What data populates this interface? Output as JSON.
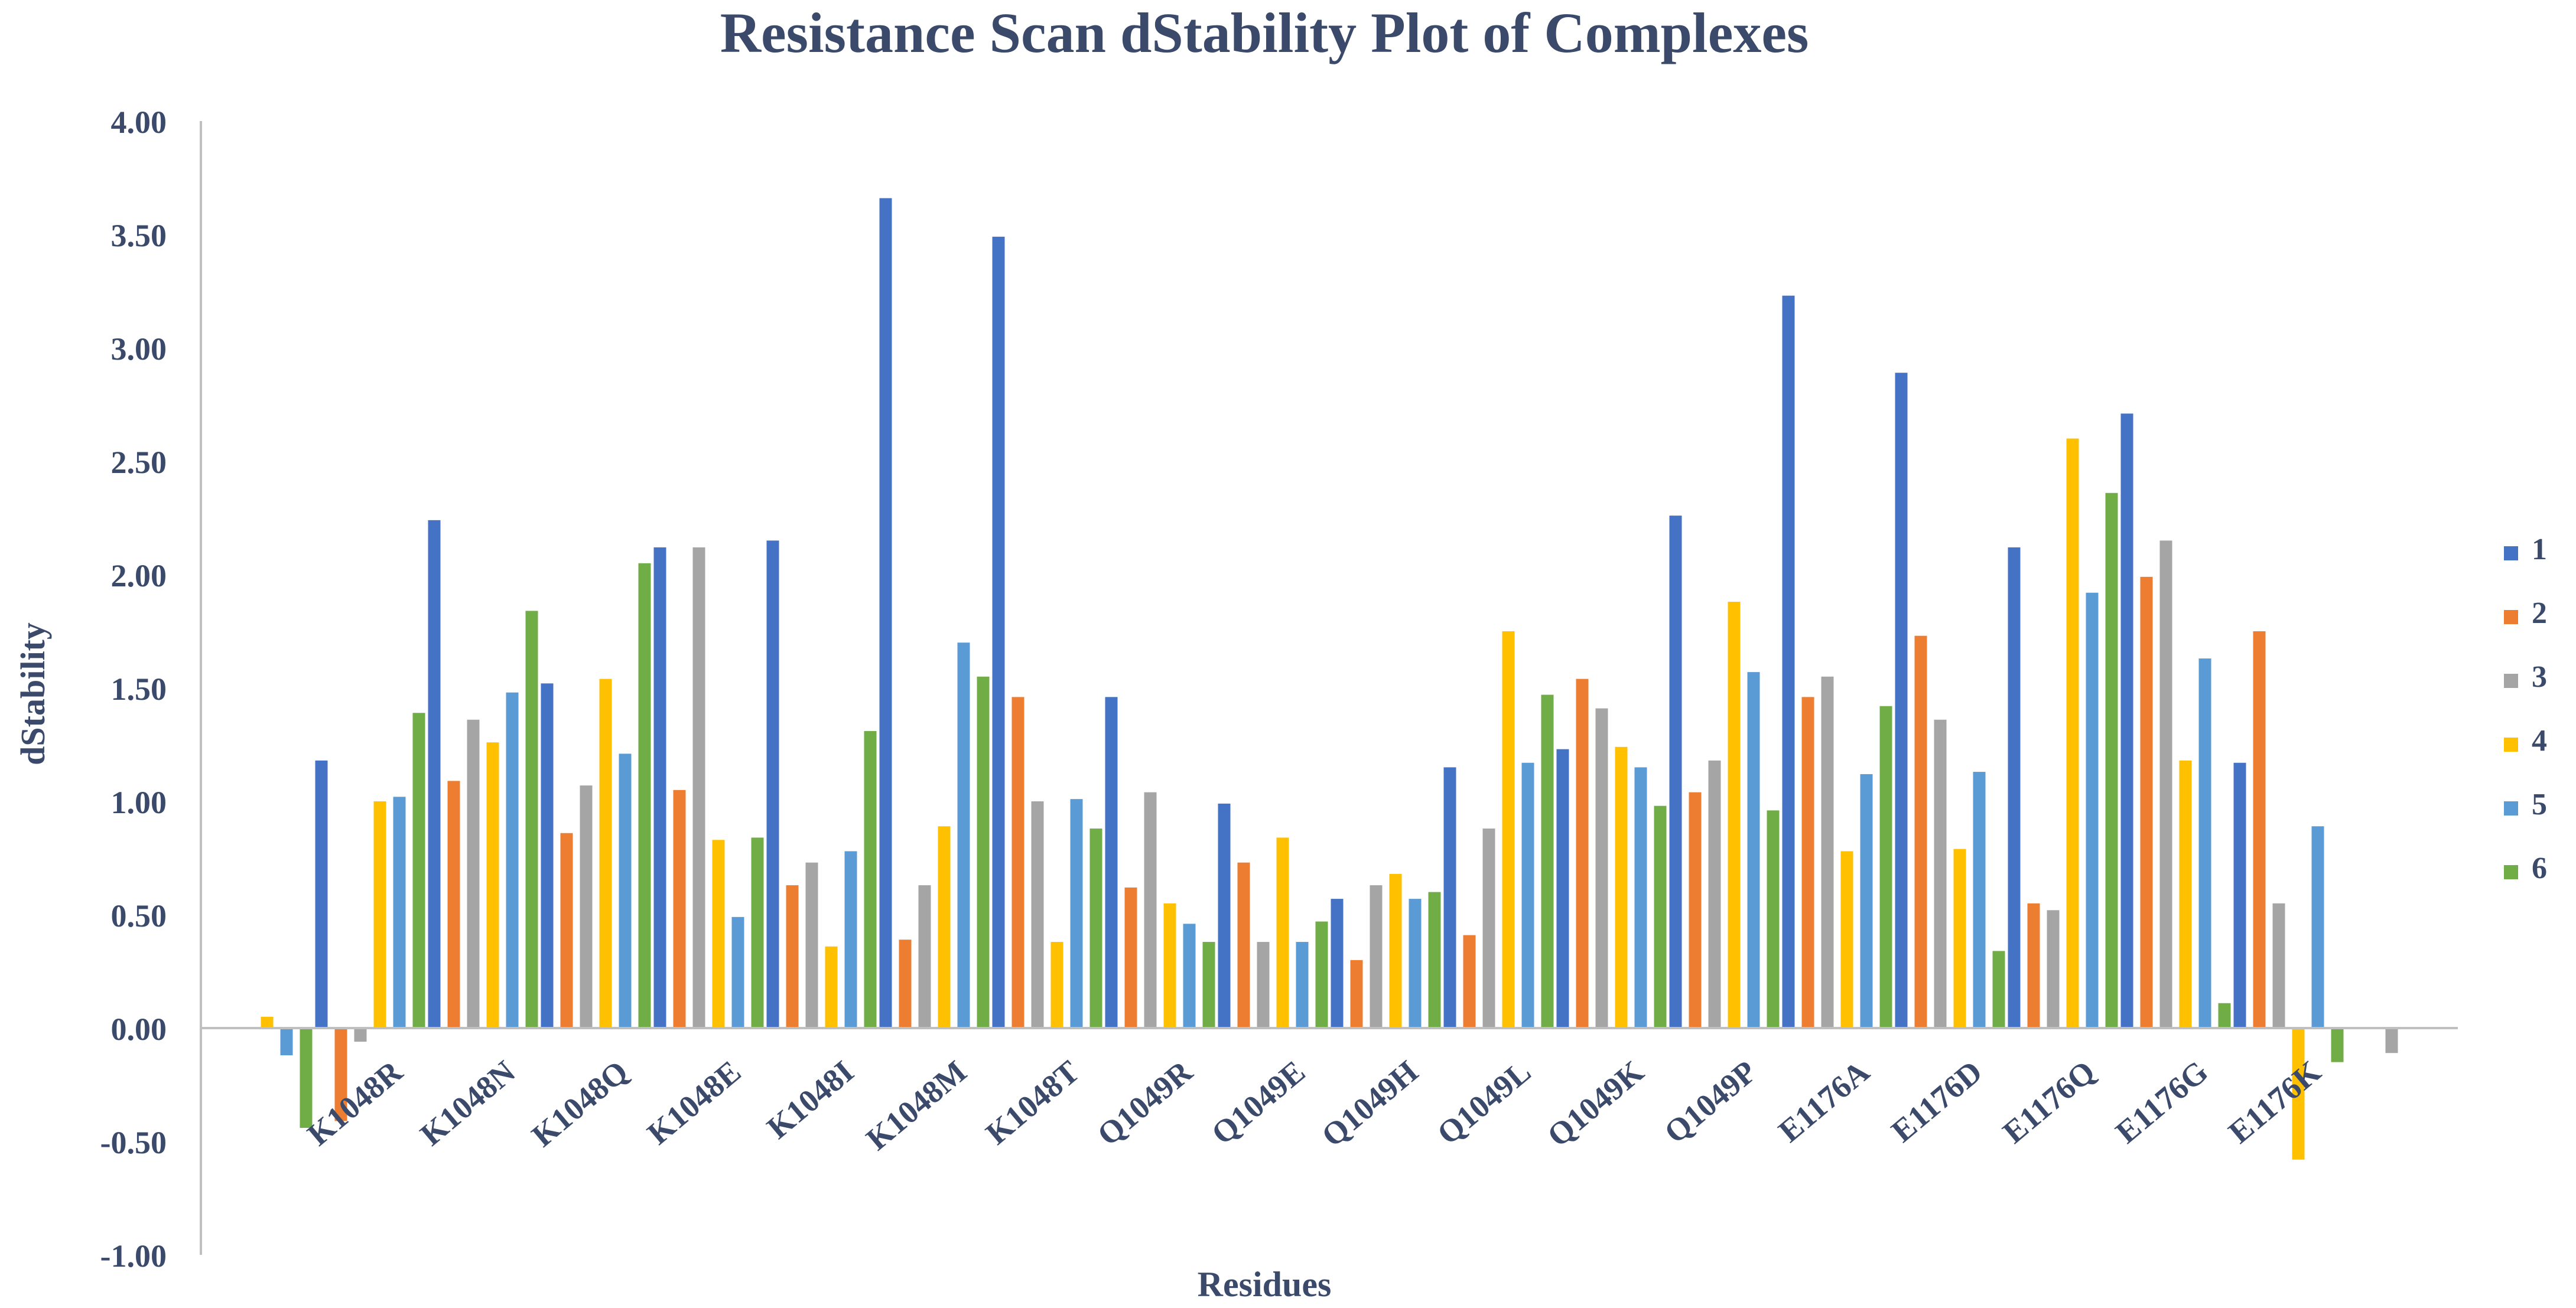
{
  "chart_data": {
    "type": "bar",
    "title": "Resistance Scan dStability Plot of Complexes",
    "xlabel": "Residues",
    "ylabel": "dStability",
    "ylim": [
      -1.0,
      4.0
    ],
    "yticks": [
      "-1.00",
      "-0.50",
      "0.00",
      "0.50",
      "1.00",
      "1.50",
      "2.00",
      "2.50",
      "3.00",
      "3.50",
      "4.00"
    ],
    "grid": false,
    "legend_position": "right",
    "categories": [
      "",
      "K1048R",
      "K1048N",
      "K1048Q",
      "K1048E",
      "K1048I",
      "K1048M",
      "K1048T",
      "Q1049R",
      "Q1049E",
      "Q1049H",
      "Q1049L",
      "Q1049K",
      "Q1049P",
      "E1176A",
      "E1176D",
      "E1176Q",
      "E1176G",
      "E1176K",
      ""
    ],
    "series": [
      {
        "name": "1",
        "color": "#4472C4",
        "values": [
          null,
          1.18,
          2.24,
          1.52,
          2.12,
          2.15,
          3.66,
          3.49,
          1.46,
          0.99,
          0.57,
          1.15,
          1.23,
          2.26,
          3.23,
          2.89,
          2.12,
          2.71,
          1.17,
          null
        ]
      },
      {
        "name": "2",
        "color": "#ED7D31",
        "values": [
          null,
          -0.41,
          1.09,
          0.86,
          1.05,
          0.63,
          0.39,
          1.46,
          0.62,
          0.73,
          0.3,
          0.41,
          1.54,
          1.04,
          1.46,
          1.73,
          0.55,
          1.99,
          1.75,
          null
        ]
      },
      {
        "name": "3",
        "color": "#A5A5A5",
        "values": [
          null,
          -0.06,
          1.36,
          1.07,
          2.12,
          0.73,
          0.63,
          1.0,
          1.04,
          0.38,
          0.63,
          0.88,
          1.41,
          1.18,
          1.55,
          1.36,
          0.52,
          2.15,
          0.55,
          -0.11
        ]
      },
      {
        "name": "4",
        "color": "#FFC000",
        "values": [
          0.05,
          1.0,
          1.26,
          1.54,
          0.83,
          0.36,
          0.89,
          0.38,
          0.55,
          0.84,
          0.68,
          1.75,
          1.24,
          1.88,
          0.78,
          0.79,
          2.6,
          1.18,
          -0.58,
          null
        ]
      },
      {
        "name": "5",
        "color": "#5B9BD5",
        "values": [
          -0.12,
          1.02,
          1.48,
          1.21,
          0.49,
          0.78,
          1.7,
          1.01,
          0.46,
          0.38,
          0.57,
          1.17,
          1.15,
          1.57,
          1.12,
          1.13,
          1.92,
          1.63,
          0.89,
          null
        ]
      },
      {
        "name": "6",
        "color": "#70AD47",
        "values": [
          -0.44,
          1.39,
          1.84,
          2.05,
          0.84,
          1.31,
          1.55,
          0.88,
          0.38,
          0.47,
          0.6,
          1.47,
          0.98,
          0.96,
          1.42,
          0.34,
          2.36,
          0.11,
          -0.15,
          null
        ]
      }
    ]
  }
}
